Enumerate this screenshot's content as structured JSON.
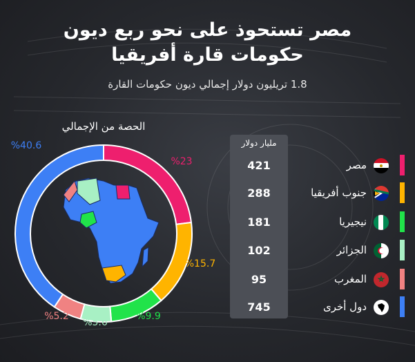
{
  "header": {
    "title_line1": "مصر تستحوذ على نحو ربع ديون",
    "title_line2": "حكومات قارة أفريقيا",
    "subtitle": "1.8 تريليون دولار إجمالي ديون حكومات القارة"
  },
  "pie_title": "الحصة من الإجمالي",
  "table_header": "مليار دولار",
  "chart_data": [
    {
      "type": "pie",
      "title": "الحصة من الإجمالي",
      "categories": [
        "مصر",
        "جنوب أفريقيا",
        "نيجيريا",
        "الجزائر",
        "المغرب",
        "دول أخرى"
      ],
      "values": [
        23,
        15.7,
        9.9,
        5.6,
        5.2,
        40.6
      ],
      "labels": [
        "%23",
        "%15.7",
        "%9.9",
        "%5.6",
        "%5.2",
        "%40.6"
      ],
      "colors": [
        "#ee1f6e",
        "#ffb400",
        "#21e34a",
        "#a8f0c4",
        "#f08282",
        "#3d7ff5"
      ]
    },
    {
      "type": "table",
      "title": "مليار دولار",
      "categories": [
        "مصر",
        "جنوب أفريقيا",
        "نيجيريا",
        "الجزائر",
        "المغرب",
        "دول أخرى"
      ],
      "values": [
        421,
        288,
        181,
        102,
        95,
        745
      ]
    }
  ],
  "rows": [
    {
      "name": "مصر",
      "value": "421",
      "color": "#ee1f6e",
      "flag": "egypt-flag-icon"
    },
    {
      "name": "جنوب أفريقيا",
      "value": "288",
      "color": "#ffb400",
      "flag": "south-africa-flag-icon"
    },
    {
      "name": "نيجيريا",
      "value": "181",
      "color": "#21e34a",
      "flag": "nigeria-flag-icon"
    },
    {
      "name": "الجزائر",
      "value": "102",
      "color": "#a8f0c4",
      "flag": "algeria-flag-icon"
    },
    {
      "name": "المغرب",
      "value": "95",
      "color": "#f08282",
      "flag": "morocco-flag-icon"
    },
    {
      "name": "دول أخرى",
      "value": "745",
      "color": "#3d7ff5",
      "flag": "africa-map-icon"
    }
  ]
}
